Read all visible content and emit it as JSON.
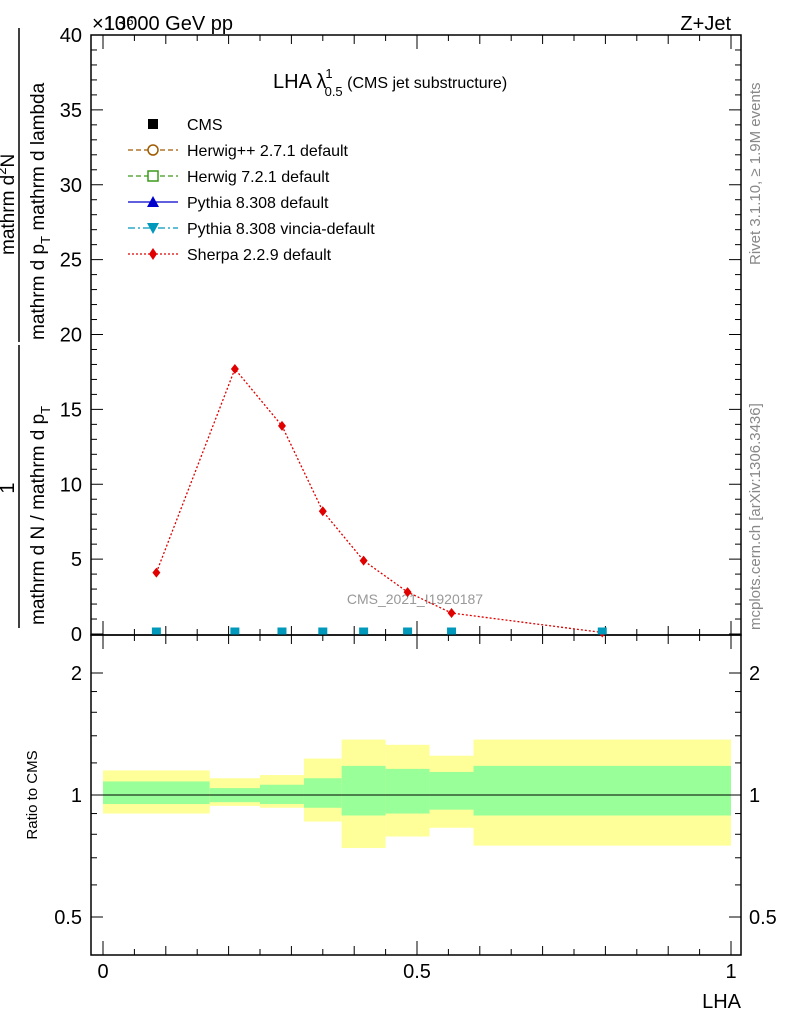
{
  "header": {
    "energy": "13000 GeV pp",
    "process": "Z+Jet",
    "exponent": "×10⁶"
  },
  "side_labels": {
    "rivet": "Rivet 3.1.10, ≥ 1.9M events",
    "mcplots": "mcplots.cern.ch [arXiv:1306.3436]"
  },
  "plot_title": {
    "main": "LHA λ",
    "sup": "1",
    "sub": "0.5",
    "suffix": " (CMS jet substructure)"
  },
  "watermark": "CMS_2021_I1920187",
  "ylabel": {
    "top_num": "1",
    "top_den": "mathrm d N / mathrm d p",
    "top_den_sub": "T",
    "main_num": "mathrm d",
    "main_num_sup": "2",
    "main_num_tail": "N",
    "main_den": "mathrm d p",
    "main_den_sub": "T",
    "main_den_tail": " mathrm d lambda"
  },
  "legend": [
    {
      "label": "CMS",
      "color": "#000000",
      "marker": "square-filled",
      "line": "none"
    },
    {
      "label": "Herwig++ 2.7.1 default",
      "color": "#a05a00",
      "marker": "circle-open",
      "line": "dashed"
    },
    {
      "label": "Herwig 7.2.1 default",
      "color": "#3a9a1a",
      "marker": "square-open",
      "line": "dashed"
    },
    {
      "label": "Pythia 8.308 default",
      "color": "#0000cc",
      "marker": "triangle-up",
      "line": "solid"
    },
    {
      "label": "Pythia 8.308 vincia-default",
      "color": "#0099bb",
      "marker": "triangle-down",
      "line": "dashdot"
    },
    {
      "label": "Sherpa 2.2.9 default",
      "color": "#e00000",
      "marker": "diamond",
      "line": "dotted"
    }
  ],
  "ratio_label": "Ratio to CMS",
  "xlabel": "LHA",
  "chart_data": {
    "type": "line",
    "x_ticks": [
      "0",
      "0.5",
      "1"
    ],
    "main": {
      "ylim": [
        0,
        40
      ],
      "y_ticks": [
        "0",
        "5",
        "10",
        "15",
        "20",
        "25",
        "30",
        "35",
        "40"
      ],
      "series": [
        {
          "name": "Sherpa 2.2.9 default",
          "x": [
            0.085,
            0.21,
            0.285,
            0.35,
            0.415,
            0.485,
            0.555,
            0.795
          ],
          "y": [
            4.1,
            17.7,
            13.9,
            8.2,
            4.9,
            2.8,
            1.4,
            0.1
          ]
        },
        {
          "name": "CMS",
          "x": [
            0.085,
            0.21,
            0.285,
            0.35,
            0.415,
            0.485,
            0.555,
            0.795
          ],
          "y": [
            0.1,
            0.1,
            0.1,
            0.1,
            0.1,
            0.1,
            0.1,
            0.1
          ]
        }
      ]
    },
    "ratio": {
      "ylim": [
        0.4,
        2.3
      ],
      "y_ticks": [
        "0.5",
        "1",
        "2"
      ],
      "bins": [
        {
          "x0": 0.0,
          "x1": 0.17,
          "inner": [
            0.95,
            1.08
          ],
          "outer": [
            0.9,
            1.15
          ]
        },
        {
          "x0": 0.17,
          "x1": 0.25,
          "inner": [
            0.96,
            1.04
          ],
          "outer": [
            0.94,
            1.1
          ]
        },
        {
          "x0": 0.25,
          "x1": 0.32,
          "inner": [
            0.95,
            1.06
          ],
          "outer": [
            0.93,
            1.12
          ]
        },
        {
          "x0": 0.32,
          "x1": 0.38,
          "inner": [
            0.93,
            1.1
          ],
          "outer": [
            0.86,
            1.23
          ]
        },
        {
          "x0": 0.38,
          "x1": 0.45,
          "inner": [
            0.89,
            1.18
          ],
          "outer": [
            0.74,
            1.37
          ]
        },
        {
          "x0": 0.45,
          "x1": 0.52,
          "inner": [
            0.9,
            1.16
          ],
          "outer": [
            0.79,
            1.33
          ]
        },
        {
          "x0": 0.52,
          "x1": 0.59,
          "inner": [
            0.92,
            1.14
          ],
          "outer": [
            0.83,
            1.25
          ]
        },
        {
          "x0": 0.59,
          "x1": 1.0,
          "inner": [
            0.89,
            1.18
          ],
          "outer": [
            0.75,
            1.37
          ]
        }
      ],
      "reference": 1.0
    }
  }
}
